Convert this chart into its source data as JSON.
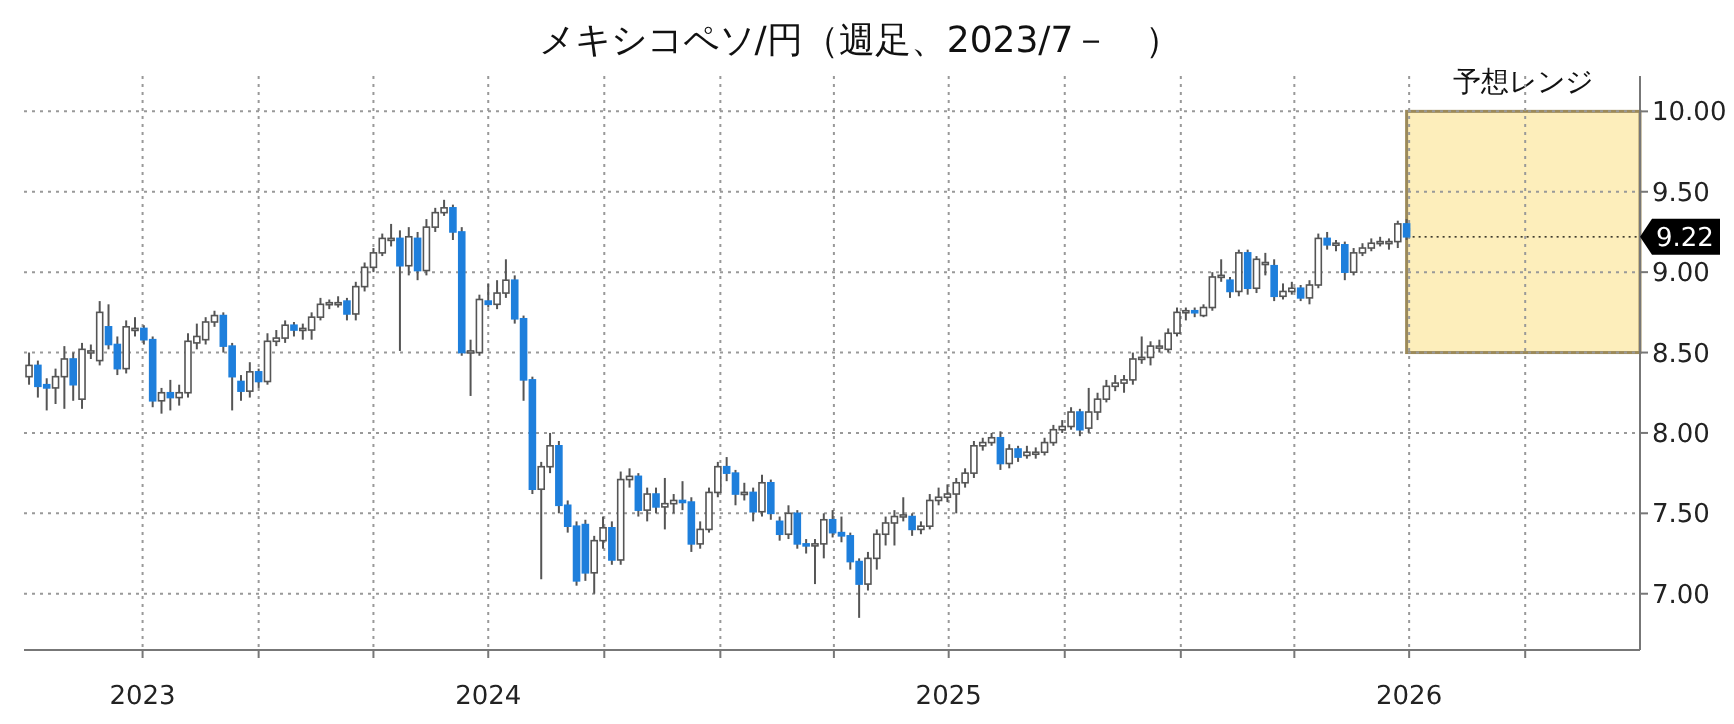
{
  "chart_data": {
    "type": "candlestick",
    "title": "メキシコペソ/円（週足、2023/7－　）",
    "x": [
      "2023-07-03",
      "2023-07-10",
      "2023-07-17",
      "2023-07-24",
      "2023-07-31",
      "2023-08-07",
      "2023-08-14",
      "2023-08-21",
      "2023-08-28",
      "2023-09-04",
      "2023-09-11",
      "2023-09-18",
      "2023-09-25",
      "2023-10-02",
      "2023-10-09",
      "2023-10-16",
      "2023-10-23",
      "2023-10-30",
      "2023-11-06",
      "2023-11-13",
      "2023-11-20",
      "2023-11-27",
      "2023-12-04",
      "2023-12-11",
      "2023-12-18",
      "2023-12-25",
      "2024-01-01",
      "2024-01-08",
      "2024-01-15",
      "2024-01-22",
      "2024-01-29",
      "2024-02-05",
      "2024-02-12",
      "2024-02-19",
      "2024-02-26",
      "2024-03-04",
      "2024-03-11",
      "2024-03-18",
      "2024-03-25",
      "2024-04-01",
      "2024-04-08",
      "2024-04-15",
      "2024-04-22",
      "2024-04-29",
      "2024-05-06",
      "2024-05-13",
      "2024-05-20",
      "2024-05-27",
      "2024-06-03",
      "2024-06-10",
      "2024-06-17",
      "2024-06-24",
      "2024-07-01",
      "2024-07-08",
      "2024-07-15",
      "2024-07-22",
      "2024-07-29",
      "2024-08-05",
      "2024-08-12",
      "2024-08-19",
      "2024-08-26",
      "2024-09-02",
      "2024-09-09",
      "2024-09-16",
      "2024-09-23",
      "2024-09-30",
      "2024-10-07",
      "2024-10-14",
      "2024-10-21",
      "2024-10-28",
      "2024-11-04",
      "2024-11-11",
      "2024-11-18",
      "2024-11-25",
      "2024-12-02",
      "2024-12-09",
      "2024-12-16",
      "2024-12-23",
      "2024-12-30",
      "2025-01-06",
      "2025-01-13",
      "2025-01-20",
      "2025-01-27",
      "2025-02-03",
      "2025-02-10",
      "2025-02-17",
      "2025-02-24",
      "2025-03-03",
      "2025-03-10",
      "2025-03-17",
      "2025-03-24",
      "2025-03-31",
      "2025-04-07",
      "2025-04-14",
      "2025-04-21",
      "2025-04-28",
      "2025-05-05",
      "2025-05-12",
      "2025-05-19",
      "2025-05-26",
      "2025-06-02",
      "2025-06-09",
      "2025-06-16",
      "2025-06-23",
      "2025-06-30",
      "2025-07-07",
      "2025-07-14",
      "2025-07-21",
      "2025-07-28",
      "2025-08-04",
      "2025-08-11",
      "2025-08-18",
      "2025-08-25",
      "2025-09-01",
      "2025-09-08",
      "2025-09-15",
      "2025-09-22",
      "2025-09-29",
      "2025-10-06",
      "2025-10-13",
      "2025-10-20",
      "2025-10-27",
      "2025-11-03",
      "2025-11-10",
      "2025-11-17",
      "2025-11-24",
      "2025-12-01",
      "2025-12-08",
      "2025-12-15",
      "2025-12-22",
      "2025-12-29",
      "2026-01-05",
      "2026-01-12",
      "2026-01-19",
      "2026-01-26",
      "2026-02-02",
      "2026-02-09",
      "2026-02-16",
      "2026-02-23",
      "2026-03-02",
      "2026-03-09",
      "2026-03-16",
      "2026-03-23",
      "2026-03-30",
      "2026-04-06",
      "2026-04-13",
      "2026-04-20",
      "2026-04-27",
      "2026-05-04",
      "2026-05-11",
      "2026-05-18",
      "2026-05-25",
      "2026-06-01",
      "2026-06-08",
      "2026-06-15",
      "2026-06-22",
      "2026-06-29"
    ],
    "ohlc": [
      [
        8.35,
        8.5,
        8.3,
        8.42
      ],
      [
        8.42,
        8.45,
        8.22,
        8.29
      ],
      [
        8.3,
        8.34,
        8.14,
        8.28
      ],
      [
        8.28,
        8.4,
        8.18,
        8.35
      ],
      [
        8.35,
        8.54,
        8.15,
        8.46
      ],
      [
        8.46,
        8.5,
        8.2,
        8.3
      ],
      [
        8.21,
        8.56,
        8.15,
        8.52
      ],
      [
        8.5,
        8.55,
        8.46,
        8.51
      ],
      [
        8.45,
        8.82,
        8.42,
        8.75
      ],
      [
        8.66,
        8.8,
        8.52,
        8.55
      ],
      [
        8.55,
        8.6,
        8.36,
        8.4
      ],
      [
        8.4,
        8.7,
        8.37,
        8.66
      ],
      [
        8.64,
        8.72,
        8.6,
        8.65
      ],
      [
        8.65,
        8.67,
        8.55,
        8.58
      ],
      [
        8.58,
        8.6,
        8.16,
        8.2
      ],
      [
        8.2,
        8.28,
        8.12,
        8.25
      ],
      [
        8.25,
        8.33,
        8.14,
        8.22
      ],
      [
        8.22,
        8.3,
        8.17,
        8.25
      ],
      [
        8.25,
        8.62,
        8.22,
        8.57
      ],
      [
        8.56,
        8.68,
        8.52,
        8.6
      ],
      [
        8.58,
        8.72,
        8.55,
        8.69
      ],
      [
        8.69,
        8.76,
        8.66,
        8.73
      ],
      [
        8.73,
        8.75,
        8.5,
        8.54
      ],
      [
        8.54,
        8.56,
        8.14,
        8.35
      ],
      [
        8.32,
        8.36,
        8.2,
        8.26
      ],
      [
        8.26,
        8.44,
        8.22,
        8.38
      ],
      [
        8.38,
        8.4,
        8.28,
        8.32
      ],
      [
        8.32,
        8.62,
        8.3,
        8.57
      ],
      [
        8.57,
        8.64,
        8.54,
        8.59
      ],
      [
        8.59,
        8.7,
        8.56,
        8.67
      ],
      [
        8.67,
        8.69,
        8.6,
        8.64
      ],
      [
        8.64,
        8.68,
        8.58,
        8.65
      ],
      [
        8.64,
        8.75,
        8.58,
        8.72
      ],
      [
        8.72,
        8.84,
        8.7,
        8.8
      ],
      [
        8.8,
        8.83,
        8.77,
        8.81
      ],
      [
        8.8,
        8.85,
        8.78,
        8.81
      ],
      [
        8.82,
        8.84,
        8.7,
        8.74
      ],
      [
        8.74,
        8.94,
        8.7,
        8.91
      ],
      [
        8.91,
        9.06,
        8.88,
        9.03
      ],
      [
        9.03,
        9.15,
        9,
        9.12
      ],
      [
        9.12,
        9.24,
        9.1,
        9.21
      ],
      [
        9.2,
        9.3,
        9.16,
        9.21
      ],
      [
        9.21,
        9.26,
        8.51,
        9.04
      ],
      [
        9.04,
        9.28,
        8.98,
        9.22
      ],
      [
        9.21,
        9.25,
        8.95,
        9.01
      ],
      [
        9.01,
        9.33,
        8.98,
        9.28
      ],
      [
        9.28,
        9.4,
        9.25,
        9.37
      ],
      [
        9.37,
        9.45,
        9.35,
        9.4
      ],
      [
        9.4,
        9.42,
        9.2,
        9.25
      ],
      [
        9.25,
        9.28,
        8.48,
        8.5
      ],
      [
        8.5,
        8.58,
        8.23,
        8.51
      ],
      [
        8.5,
        8.86,
        8.48,
        8.83
      ],
      [
        8.82,
        8.93,
        8.78,
        8.8
      ],
      [
        8.8,
        8.95,
        8.77,
        8.87
      ],
      [
        8.87,
        9.08,
        8.84,
        8.95
      ],
      [
        8.95,
        8.98,
        8.68,
        8.71
      ],
      [
        8.71,
        8.73,
        8.2,
        8.33
      ],
      [
        8.33,
        8.35,
        7.62,
        7.65
      ],
      [
        7.65,
        7.82,
        7.09,
        7.79
      ],
      [
        7.79,
        8,
        7.75,
        7.92
      ],
      [
        7.92,
        7.95,
        7.5,
        7.55
      ],
      [
        7.55,
        7.58,
        7.38,
        7.42
      ],
      [
        7.42,
        7.45,
        7.05,
        7.08
      ],
      [
        7.43,
        7.46,
        7.08,
        7.13
      ],
      [
        7.13,
        7.36,
        7,
        7.33
      ],
      [
        7.33,
        7.48,
        7.28,
        7.41
      ],
      [
        7.41,
        7.45,
        7.18,
        7.21
      ],
      [
        7.21,
        7.76,
        7.18,
        7.71
      ],
      [
        7.71,
        7.78,
        7.66,
        7.73
      ],
      [
        7.73,
        7.75,
        7.48,
        7.52
      ],
      [
        7.52,
        7.66,
        7.45,
        7.62
      ],
      [
        7.62,
        7.66,
        7.5,
        7.54
      ],
      [
        7.54,
        7.72,
        7.4,
        7.56
      ],
      [
        7.56,
        7.62,
        7.5,
        7.58
      ],
      [
        7.58,
        7.7,
        7.52,
        7.57
      ],
      [
        7.57,
        7.6,
        7.26,
        7.31
      ],
      [
        7.31,
        7.45,
        7.28,
        7.4
      ],
      [
        7.4,
        7.66,
        7.38,
        7.63
      ],
      [
        7.63,
        7.82,
        7.6,
        7.79
      ],
      [
        7.79,
        7.85,
        7.7,
        7.75
      ],
      [
        7.75,
        7.77,
        7.55,
        7.62
      ],
      [
        7.62,
        7.69,
        7.58,
        7.63
      ],
      [
        7.63,
        7.66,
        7.45,
        7.51
      ],
      [
        7.51,
        7.74,
        7.48,
        7.69
      ],
      [
        7.69,
        7.71,
        7.46,
        7.5
      ],
      [
        7.45,
        7.48,
        7.33,
        7.37
      ],
      [
        7.37,
        7.55,
        7.34,
        7.5
      ],
      [
        7.5,
        7.52,
        7.28,
        7.31
      ],
      [
        7.31,
        7.34,
        7.25,
        7.3
      ],
      [
        7.3,
        7.34,
        7.06,
        7.31
      ],
      [
        7.31,
        7.5,
        7.22,
        7.46
      ],
      [
        7.46,
        7.52,
        7.35,
        7.38
      ],
      [
        7.38,
        7.48,
        7.32,
        7.36
      ],
      [
        7.36,
        7.38,
        7.15,
        7.2
      ],
      [
        7.2,
        7.22,
        6.85,
        7.06
      ],
      [
        7.06,
        7.26,
        7.02,
        7.22
      ],
      [
        7.22,
        7.4,
        7.15,
        7.37
      ],
      [
        7.37,
        7.48,
        7.3,
        7.44
      ],
      [
        7.44,
        7.52,
        7.3,
        7.48
      ],
      [
        7.48,
        7.6,
        7.45,
        7.49
      ],
      [
        7.48,
        7.5,
        7.36,
        7.4
      ],
      [
        7.4,
        7.45,
        7.37,
        7.42
      ],
      [
        7.42,
        7.62,
        7.4,
        7.58
      ],
      [
        7.58,
        7.66,
        7.55,
        7.6
      ],
      [
        7.6,
        7.68,
        7.57,
        7.62
      ],
      [
        7.62,
        7.72,
        7.5,
        7.69
      ],
      [
        7.69,
        7.78,
        7.66,
        7.75
      ],
      [
        7.75,
        7.95,
        7.72,
        7.92
      ],
      [
        7.92,
        7.97,
        7.89,
        7.94
      ],
      [
        7.94,
        8,
        7.92,
        7.97
      ],
      [
        7.97,
        8.01,
        7.77,
        7.81
      ],
      [
        7.81,
        7.93,
        7.78,
        7.9
      ],
      [
        7.9,
        7.92,
        7.82,
        7.85
      ],
      [
        7.86,
        7.92,
        7.84,
        7.88
      ],
      [
        7.87,
        7.91,
        7.84,
        7.88
      ],
      [
        7.88,
        7.97,
        7.86,
        7.94
      ],
      [
        7.94,
        8.05,
        7.92,
        8.02
      ],
      [
        8.02,
        8.08,
        8,
        8.04
      ],
      [
        8.04,
        8.16,
        8.02,
        8.13
      ],
      [
        8.13,
        8.15,
        7.98,
        8.02
      ],
      [
        8.03,
        8.28,
        8,
        8.13
      ],
      [
        8.13,
        8.25,
        8.08,
        8.21
      ],
      [
        8.21,
        8.33,
        8.19,
        8.29
      ],
      [
        8.29,
        8.36,
        8.26,
        8.31
      ],
      [
        8.31,
        8.36,
        8.25,
        8.33
      ],
      [
        8.33,
        8.5,
        8.3,
        8.46
      ],
      [
        8.46,
        8.6,
        8.43,
        8.47
      ],
      [
        8.47,
        8.57,
        8.42,
        8.54
      ],
      [
        8.53,
        8.58,
        8.5,
        8.54
      ],
      [
        8.52,
        8.65,
        8.5,
        8.62
      ],
      [
        8.62,
        8.78,
        8.6,
        8.75
      ],
      [
        8.75,
        8.78,
        8.7,
        8.76
      ],
      [
        8.76,
        8.78,
        8.72,
        8.75
      ],
      [
        8.73,
        8.8,
        8.72,
        8.78
      ],
      [
        8.78,
        9,
        8.76,
        8.97
      ],
      [
        8.97,
        9.08,
        8.94,
        8.98
      ],
      [
        8.95,
        8.97,
        8.84,
        8.88
      ],
      [
        8.88,
        9.14,
        8.85,
        9.12
      ],
      [
        9.12,
        9.14,
        8.86,
        8.9
      ],
      [
        8.9,
        9.1,
        8.87,
        9.08
      ],
      [
        9.05,
        9.12,
        8.98,
        9.06
      ],
      [
        9.04,
        9.08,
        8.82,
        8.85
      ],
      [
        8.85,
        8.93,
        8.83,
        8.88
      ],
      [
        8.88,
        8.94,
        8.86,
        8.9
      ],
      [
        8.9,
        8.92,
        8.82,
        8.84
      ],
      [
        8.84,
        8.95,
        8.8,
        8.92
      ],
      [
        8.92,
        9.24,
        8.9,
        9.21
      ],
      [
        9.21,
        9.25,
        9.14,
        9.17
      ],
      [
        9.17,
        9.2,
        9.13,
        9.18
      ],
      [
        9.17,
        9.19,
        8.95,
        9
      ],
      [
        9,
        9.15,
        8.98,
        9.12
      ],
      [
        9.12,
        9.18,
        9.1,
        9.15
      ],
      [
        9.15,
        9.21,
        9.13,
        9.18
      ],
      [
        9.18,
        9.22,
        9.16,
        9.19
      ],
      [
        9.18,
        9.21,
        9.14,
        9.19
      ],
      [
        9.19,
        9.32,
        9.15,
        9.3
      ],
      [
        9.3,
        9.33,
        9.2,
        9.22
      ]
    ],
    "xlim": [
      "2023-06-29",
      "2026-12-31"
    ],
    "xticks": [
      {
        "value": "2023-10-01",
        "label": "2023"
      },
      {
        "value": "2024-01-01",
        "label": null
      },
      {
        "value": "2024-04-01",
        "label": null
      },
      {
        "value": "2024-07-01",
        "label": "2024"
      },
      {
        "value": "2024-10-01",
        "label": null
      },
      {
        "value": "2025-01-01",
        "label": null
      },
      {
        "value": "2025-04-01",
        "label": null
      },
      {
        "value": "2025-07-01",
        "label": "2025"
      },
      {
        "value": "2025-10-01",
        "label": null
      },
      {
        "value": "2026-01-01",
        "label": null
      },
      {
        "value": "2026-04-01",
        "label": null
      },
      {
        "value": "2026-07-01",
        "label": "2026"
      },
      {
        "value": "2026-10-01",
        "label": null
      }
    ],
    "ylim": [
      6.65,
      10.22
    ],
    "yticks": [
      {
        "value": 7,
        "label": "7.00"
      },
      {
        "value": 7.5,
        "label": "7.50"
      },
      {
        "value": 8,
        "label": "8.00"
      },
      {
        "value": 8.5,
        "label": "8.50"
      },
      {
        "value": 9,
        "label": "9.00"
      },
      {
        "value": 9.5,
        "label": "9.50"
      },
      {
        "value": 10,
        "label": "10.00"
      }
    ],
    "grid": true,
    "bands": [
      {
        "axis": "y",
        "from": 8.5,
        "to": 10,
        "label": "予想レンジ",
        "color": "#fdeebb"
      }
    ],
    "annotations": [
      {
        "text": "9.22",
        "x": "2026-06-29",
        "y": 9.22
      }
    ]
  }
}
